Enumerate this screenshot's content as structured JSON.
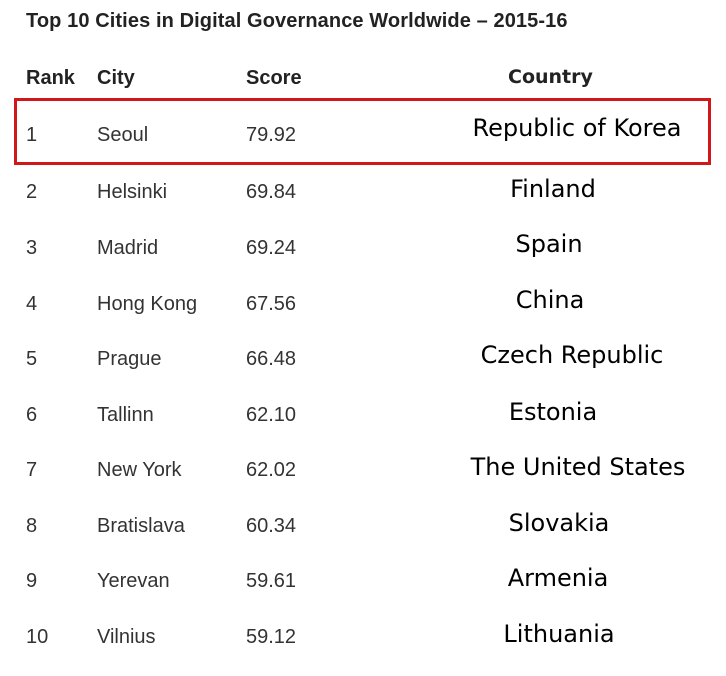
{
  "chart_data": {
    "type": "table",
    "title": "Top 10 Cities in Digital Governance Worldwide – 2015-16",
    "columns": [
      "Rank",
      "City",
      "Score",
      "Country"
    ],
    "rows": [
      {
        "rank": "1",
        "city": "Seoul",
        "score": "79.92",
        "country": "Republic of Korea",
        "highlighted": true
      },
      {
        "rank": "2",
        "city": "Helsinki",
        "score": "69.84",
        "country": "Finland",
        "highlighted": false
      },
      {
        "rank": "3",
        "city": "Madrid",
        "score": "69.24",
        "country": "Spain",
        "highlighted": false
      },
      {
        "rank": "4",
        "city": "Hong Kong",
        "score": "67.56",
        "country": "China",
        "highlighted": false
      },
      {
        "rank": "5",
        "city": "Prague",
        "score": "66.48",
        "country": "Czech Republic",
        "highlighted": false
      },
      {
        "rank": "6",
        "city": "Tallinn",
        "score": "62.10",
        "country": "Estonia",
        "highlighted": false
      },
      {
        "rank": "7",
        "city": "New York",
        "score": "62.02",
        "country": "The United States",
        "highlighted": false
      },
      {
        "rank": "8",
        "city": "Bratislava",
        "score": "60.34",
        "country": "Slovakia",
        "highlighted": false
      },
      {
        "rank": "9",
        "city": "Yerevan",
        "score": "59.61",
        "country": "Armenia",
        "highlighted": false
      },
      {
        "rank": "10",
        "city": "Vilnius",
        "score": "59.12",
        "country": "Lithuania",
        "highlighted": false
      }
    ]
  },
  "colors": {
    "highlight_border": "#d0181b",
    "text": "#333333",
    "country_text": "#000000"
  }
}
